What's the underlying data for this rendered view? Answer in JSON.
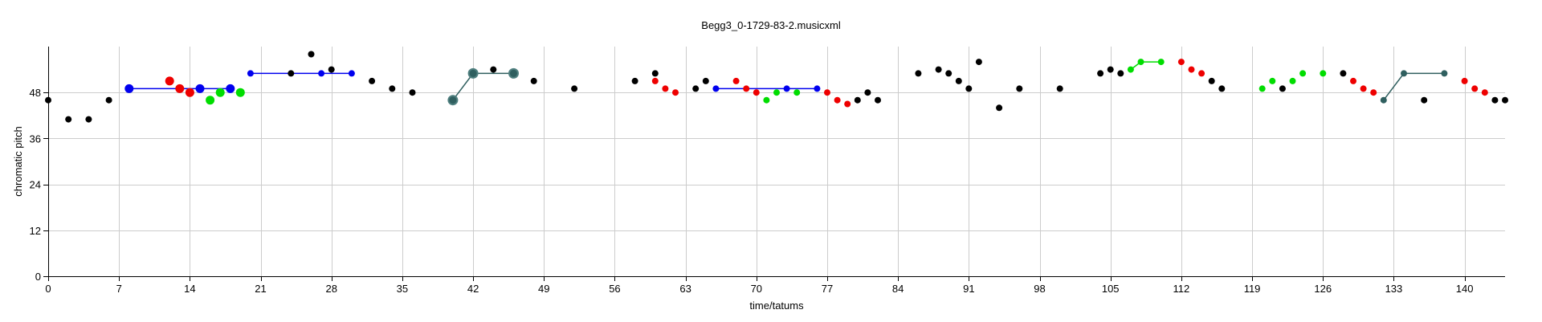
{
  "chart_data": {
    "type": "scatter",
    "title": "Begg3_0-1729-83-2.musicxml",
    "xlabel": "time/tatums",
    "ylabel": "chromatic pitch",
    "xlim": [
      0,
      144
    ],
    "ylim": [
      0,
      60
    ],
    "xticks": [
      0,
      7,
      14,
      21,
      28,
      35,
      42,
      49,
      56,
      63,
      70,
      77,
      84,
      91,
      98,
      105,
      112,
      119,
      126,
      133,
      140
    ],
    "yticks": [
      0,
      12,
      24,
      36,
      48
    ],
    "grid": true,
    "colors": {
      "black": "#000000",
      "blue": "#0000ee",
      "red": "#ee0000",
      "green": "#00dd00",
      "teal": "#2f5f5f"
    },
    "points": [
      {
        "x": 0,
        "y": 46,
        "c": "black"
      },
      {
        "x": 2,
        "y": 41,
        "c": "black"
      },
      {
        "x": 4,
        "y": 41,
        "c": "black"
      },
      {
        "x": 6,
        "y": 46,
        "c": "black"
      },
      {
        "x": 24,
        "y": 53,
        "c": "black"
      },
      {
        "x": 26,
        "y": 58,
        "c": "black"
      },
      {
        "x": 28,
        "y": 54,
        "c": "black"
      },
      {
        "x": 32,
        "y": 51,
        "c": "black"
      },
      {
        "x": 34,
        "y": 49,
        "c": "black"
      },
      {
        "x": 36,
        "y": 48,
        "c": "black"
      },
      {
        "x": 44,
        "y": 54,
        "c": "black"
      },
      {
        "x": 48,
        "y": 51,
        "c": "black"
      },
      {
        "x": 52,
        "y": 49,
        "c": "black"
      },
      {
        "x": 58,
        "y": 51,
        "c": "black"
      },
      {
        "x": 60,
        "y": 53,
        "c": "black"
      },
      {
        "x": 64,
        "y": 49,
        "c": "black"
      },
      {
        "x": 65,
        "y": 51,
        "c": "black"
      },
      {
        "x": 80,
        "y": 46,
        "c": "black"
      },
      {
        "x": 81,
        "y": 48,
        "c": "black"
      },
      {
        "x": 82,
        "y": 46,
        "c": "black"
      },
      {
        "x": 86,
        "y": 53,
        "c": "black"
      },
      {
        "x": 88,
        "y": 54,
        "c": "black"
      },
      {
        "x": 89,
        "y": 53,
        "c": "black"
      },
      {
        "x": 90,
        "y": 51,
        "c": "black"
      },
      {
        "x": 91,
        "y": 49,
        "c": "black"
      },
      {
        "x": 92,
        "y": 56,
        "c": "black"
      },
      {
        "x": 94,
        "y": 44,
        "c": "black"
      },
      {
        "x": 96,
        "y": 49,
        "c": "black"
      },
      {
        "x": 100,
        "y": 49,
        "c": "black"
      },
      {
        "x": 104,
        "y": 53,
        "c": "black"
      },
      {
        "x": 105,
        "y": 54,
        "c": "black"
      },
      {
        "x": 106,
        "y": 53,
        "c": "black"
      },
      {
        "x": 115,
        "y": 51,
        "c": "black"
      },
      {
        "x": 116,
        "y": 49,
        "c": "black"
      },
      {
        "x": 122,
        "y": 49,
        "c": "black"
      },
      {
        "x": 128,
        "y": 53,
        "c": "black"
      },
      {
        "x": 136,
        "y": 46,
        "c": "black"
      },
      {
        "x": 143,
        "y": 46,
        "c": "black"
      },
      {
        "x": 144,
        "y": 46,
        "c": "black"
      },
      {
        "x": 12,
        "y": 51,
        "c": "red",
        "big": true
      },
      {
        "x": 13,
        "y": 49,
        "c": "red",
        "big": true
      },
      {
        "x": 14,
        "y": 48,
        "c": "red",
        "big": true
      },
      {
        "x": 60,
        "y": 51,
        "c": "red"
      },
      {
        "x": 61,
        "y": 49,
        "c": "red"
      },
      {
        "x": 62,
        "y": 48,
        "c": "red"
      },
      {
        "x": 68,
        "y": 51,
        "c": "red"
      },
      {
        "x": 69,
        "y": 49,
        "c": "red"
      },
      {
        "x": 70,
        "y": 48,
        "c": "red"
      },
      {
        "x": 77,
        "y": 48,
        "c": "red"
      },
      {
        "x": 78,
        "y": 46,
        "c": "red"
      },
      {
        "x": 79,
        "y": 45,
        "c": "red"
      },
      {
        "x": 112,
        "y": 56,
        "c": "red"
      },
      {
        "x": 113,
        "y": 54,
        "c": "red"
      },
      {
        "x": 114,
        "y": 53,
        "c": "red"
      },
      {
        "x": 129,
        "y": 51,
        "c": "red"
      },
      {
        "x": 130,
        "y": 49,
        "c": "red"
      },
      {
        "x": 131,
        "y": 48,
        "c": "red"
      },
      {
        "x": 140,
        "y": 51,
        "c": "red"
      },
      {
        "x": 141,
        "y": 49,
        "c": "red"
      },
      {
        "x": 142,
        "y": 48,
        "c": "red"
      },
      {
        "x": 16,
        "y": 46,
        "c": "green",
        "big": true
      },
      {
        "x": 17,
        "y": 48,
        "c": "green",
        "big": true
      },
      {
        "x": 19,
        "y": 48,
        "c": "green",
        "big": true
      },
      {
        "x": 71,
        "y": 46,
        "c": "green"
      },
      {
        "x": 72,
        "y": 48,
        "c": "green"
      },
      {
        "x": 74,
        "y": 48,
        "c": "green"
      },
      {
        "x": 107,
        "y": 54,
        "c": "green"
      },
      {
        "x": 108,
        "y": 56,
        "c": "green"
      },
      {
        "x": 110,
        "y": 56,
        "c": "green"
      },
      {
        "x": 120,
        "y": 49,
        "c": "green"
      },
      {
        "x": 121,
        "y": 51,
        "c": "green"
      },
      {
        "x": 123,
        "y": 51,
        "c": "green"
      },
      {
        "x": 124,
        "y": 53,
        "c": "green"
      },
      {
        "x": 126,
        "y": 53,
        "c": "green"
      },
      {
        "x": 8,
        "y": 49,
        "c": "blue",
        "big": true
      },
      {
        "x": 15,
        "y": 49,
        "c": "blue",
        "big": true
      },
      {
        "x": 18,
        "y": 49,
        "c": "blue",
        "big": true
      },
      {
        "x": 20,
        "y": 53,
        "c": "blue"
      },
      {
        "x": 27,
        "y": 53,
        "c": "blue"
      },
      {
        "x": 30,
        "y": 53,
        "c": "blue"
      },
      {
        "x": 66,
        "y": 49,
        "c": "blue"
      },
      {
        "x": 73,
        "y": 49,
        "c": "blue"
      },
      {
        "x": 76,
        "y": 49,
        "c": "blue"
      },
      {
        "x": 40,
        "y": 46,
        "c": "teal",
        "big": true
      },
      {
        "x": 42,
        "y": 53,
        "c": "teal",
        "big": true
      },
      {
        "x": 46,
        "y": 53,
        "c": "teal",
        "big": true
      },
      {
        "x": 132,
        "y": 46,
        "c": "teal"
      },
      {
        "x": 134,
        "y": 53,
        "c": "teal"
      },
      {
        "x": 138,
        "y": 53,
        "c": "teal"
      }
    ],
    "segments": [
      {
        "c": "blue",
        "pts": [
          [
            8,
            49
          ],
          [
            18,
            49
          ]
        ]
      },
      {
        "c": "blue",
        "pts": [
          [
            20,
            53
          ],
          [
            30,
            53
          ]
        ]
      },
      {
        "c": "blue",
        "pts": [
          [
            66,
            49
          ],
          [
            76,
            49
          ]
        ]
      },
      {
        "c": "teal",
        "pts": [
          [
            40,
            46
          ],
          [
            42,
            53
          ],
          [
            46,
            53
          ]
        ]
      },
      {
        "c": "teal",
        "pts": [
          [
            132,
            46
          ],
          [
            134,
            53
          ],
          [
            138,
            53
          ]
        ]
      },
      {
        "c": "green",
        "pts": [
          [
            107,
            54
          ],
          [
            108,
            56
          ],
          [
            110,
            56
          ]
        ]
      }
    ]
  }
}
